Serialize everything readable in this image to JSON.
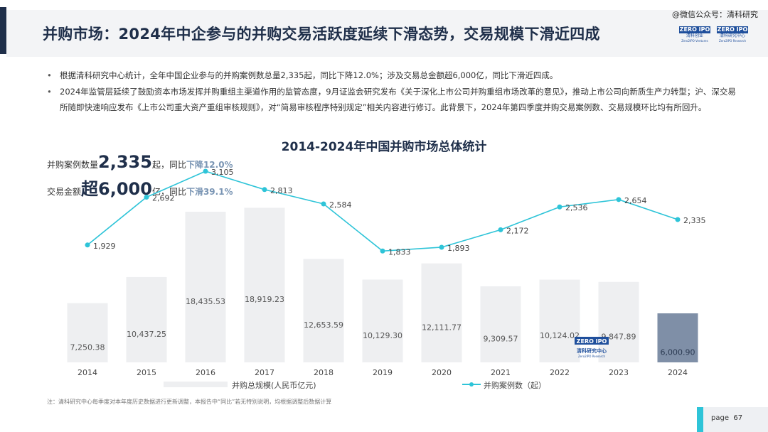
{
  "header": {
    "title": "并购市场：2024年中企参与的并购交易活跃度延续下滑态势，交易规模下滑近四成",
    "watermark": "@微信公众号：清科研究",
    "logo1": {
      "top": "ZERO IPO",
      "sub": "清科创业",
      "small": "Zero2IPO Ventures"
    },
    "logo2": {
      "top": "ZERO IPO",
      "sub": "清科研究中心",
      "small": "Zero2IPO Research"
    }
  },
  "bullets": [
    "根据清科研究中心统计，全年中国企业参与的并购案例数总量2,335起，同比下降12.0%；涉及交易总金额超6,000亿，同比下滑近四成。",
    "2024年监管层延续了鼓励资本市场发挥并购重组主渠道作用的监管态度，9月证监会研究发布《关于深化上市公司并购重组市场改革的意见》，推动上市公司向新质生产力转型；沪、深交易所随即快速响应发布《上市公司重大资产重组审核规则》，对“简易审核程序特别规定”相关内容进行修订。此背景下，2024年第四季度并购交易案例数、交易规模环比均有所回升。"
  ],
  "stats": {
    "count": {
      "label": "并购案例数量",
      "value": "2,335",
      "unit": "起，同比",
      "change": "下降12.0%"
    },
    "amount": {
      "label": "交易金额",
      "value": "超6,000",
      "unit": "亿，同比",
      "change": "下滑39.1%"
    }
  },
  "chart_data": {
    "type": "bar+line",
    "title": "2014-2024年中国并购市场总体统计",
    "categories": [
      "2014",
      "2015",
      "2016",
      "2017",
      "2018",
      "2019",
      "2020",
      "2021",
      "2022",
      "2023",
      "2024"
    ],
    "series": [
      {
        "name": "并购总规模(人民币亿元)",
        "type": "bar",
        "values": [
          7250.38,
          10437.25,
          18435.53,
          18919.23,
          12653.59,
          10129.3,
          12111.77,
          9309.57,
          10124.02,
          9847.89,
          6000.9
        ],
        "labels": [
          "7,250.38",
          "10,437.25",
          "18,435.53",
          "18,919.23",
          "12,653.59",
          "10,129.30",
          "12,111.77",
          "9,309.57",
          "10,124.02",
          "9,847.89",
          "6,000.90"
        ]
      },
      {
        "name": "并购案例数（起）",
        "type": "line",
        "values": [
          1929,
          2692,
          3105,
          2813,
          2584,
          1833,
          1893,
          2172,
          2536,
          2654,
          2335
        ],
        "labels": [
          "1,929",
          "2,692",
          "3,105",
          "2,813",
          "2,584",
          "1,833",
          "1,893",
          "2,172",
          "2,536",
          "2,654",
          "2,335"
        ]
      }
    ],
    "bar_ylim": [
      0,
      20000
    ],
    "line_ylim": [
      0,
      3400
    ],
    "colors": {
      "bar": "#eeeff1",
      "bar_highlight": "#7f8fa7",
      "line": "#2ec4d8"
    }
  },
  "chart_watermark": {
    "top": "ZERO IPO",
    "sub": "清科研究中心",
    "small": "Zero2IPO Research"
  },
  "footnote": "注：清科研究中心每季度对本年度历史数据进行更新调整，本报告中“同比”若无特别说明，均根据调整后数据计算",
  "page": {
    "label": "page",
    "number": "67"
  }
}
